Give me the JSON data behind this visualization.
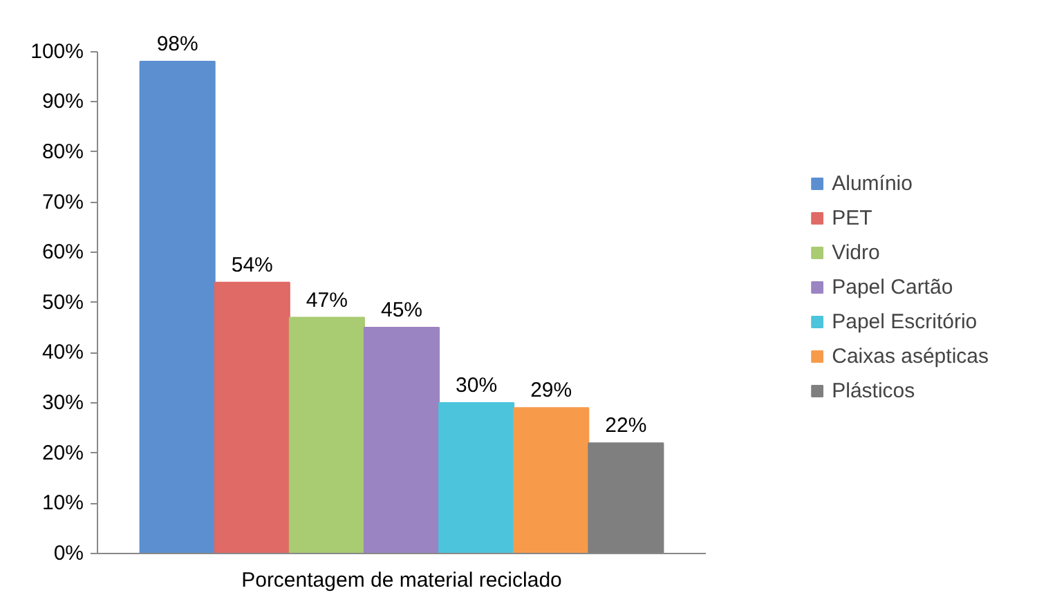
{
  "chart_data": {
    "type": "bar",
    "categories": [
      "Porcentagem de material reciclado"
    ],
    "series": [
      {
        "name": "Alumínio",
        "color": "#5b8fd0",
        "values": [
          98
        ],
        "value_labels": [
          "98%"
        ]
      },
      {
        "name": "PET",
        "color": "#e06a66",
        "values": [
          54
        ],
        "value_labels": [
          "54%"
        ]
      },
      {
        "name": "Vidro",
        "color": "#a9cb72",
        "values": [
          47
        ],
        "value_labels": [
          "47%"
        ]
      },
      {
        "name": "Papel Cartão",
        "color": "#9b84c2",
        "values": [
          45
        ],
        "value_labels": [
          "45%"
        ]
      },
      {
        "name": "Papel Escritório",
        "color": "#4cc4dc",
        "values": [
          30
        ],
        "value_labels": [
          "30%"
        ]
      },
      {
        "name": "Caixas asépticas",
        "color": "#f79b4b",
        "values": [
          29
        ],
        "value_labels": [
          "29%"
        ]
      },
      {
        "name": "Plásticos",
        "color": "#7f7f7f",
        "values": [
          22
        ],
        "value_labels": [
          "22%"
        ]
      }
    ],
    "ylim": [
      0,
      100
    ],
    "yticks": [
      {
        "value": 0,
        "label": "0%"
      },
      {
        "value": 10,
        "label": "10%"
      },
      {
        "value": 20,
        "label": "20%"
      },
      {
        "value": 30,
        "label": "30%"
      },
      {
        "value": 40,
        "label": "40%"
      },
      {
        "value": 50,
        "label": "50%"
      },
      {
        "value": 60,
        "label": "60%"
      },
      {
        "value": 70,
        "label": "70%"
      },
      {
        "value": 80,
        "label": "80%"
      },
      {
        "value": 90,
        "label": "90%"
      },
      {
        "value": 100,
        "label": "100%"
      }
    ],
    "grid": false,
    "legend": "right"
  }
}
